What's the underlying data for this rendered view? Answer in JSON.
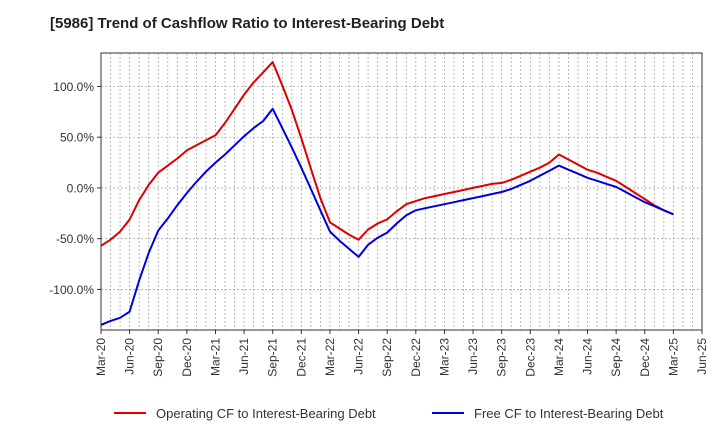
{
  "chart_data": {
    "type": "line",
    "title": "[5986]  Trend of Cashflow Ratio to Interest-Bearing Debt",
    "xlabel": "",
    "ylabel": "",
    "x": [
      "Mar-20",
      "Apr-20",
      "May-20",
      "Jun-20",
      "Jul-20",
      "Aug-20",
      "Sep-20",
      "Oct-20",
      "Nov-20",
      "Dec-20",
      "Jan-21",
      "Feb-21",
      "Mar-21",
      "Apr-21",
      "May-21",
      "Jun-21",
      "Jul-21",
      "Aug-21",
      "Sep-21",
      "Oct-21",
      "Nov-21",
      "Dec-21",
      "Jan-22",
      "Feb-22",
      "Mar-22",
      "Apr-22",
      "May-22",
      "Jun-22",
      "Jul-22",
      "Aug-22",
      "Sep-22",
      "Oct-22",
      "Nov-22",
      "Dec-22",
      "Jan-23",
      "Feb-23",
      "Mar-23",
      "Apr-23",
      "May-23",
      "Jun-23",
      "Jul-23",
      "Aug-23",
      "Sep-23",
      "Oct-23",
      "Nov-23",
      "Dec-23",
      "Jan-24",
      "Feb-24",
      "Mar-24",
      "Apr-24",
      "May-24",
      "Jun-24",
      "Jul-24",
      "Aug-24",
      "Sep-24",
      "Oct-24",
      "Nov-24",
      "Dec-24",
      "Jan-25",
      "Feb-25",
      "Mar-25"
    ],
    "x_tick_labels": [
      "Mar-20",
      "Jun-20",
      "Sep-20",
      "Dec-20",
      "Mar-21",
      "Jun-21",
      "Sep-21",
      "Dec-21",
      "Mar-22",
      "Jun-22",
      "Sep-22",
      "Dec-22",
      "Mar-23",
      "Jun-23",
      "Sep-23",
      "Dec-23",
      "Mar-24",
      "Jun-24",
      "Sep-24",
      "Dec-24",
      "Mar-25",
      "Jun-25"
    ],
    "y_tick_labels": [
      "100.0%",
      "50.0%",
      "0.0%",
      "-50.0%",
      "-100.0%"
    ],
    "y_ticks": [
      100,
      50,
      0,
      -50,
      -100
    ],
    "ylim": [
      -140,
      133
    ],
    "grid": true,
    "legend_position": "bottom",
    "series": [
      {
        "name": "Operating CF to Interest-Bearing Debt",
        "color": "#dd0000",
        "values": [
          -57,
          -51,
          -43,
          -31,
          -12,
          3,
          15,
          22,
          29,
          37,
          42,
          47,
          52,
          64,
          78,
          92,
          104,
          114,
          124,
          101,
          77,
          49,
          19,
          -10,
          -34,
          -40,
          -46,
          -51,
          -41,
          -35,
          -31,
          -23,
          -16,
          -13,
          -10,
          -8,
          -6,
          -4,
          -2,
          0,
          2,
          4,
          5,
          8,
          12,
          16,
          20,
          25,
          33,
          28,
          23,
          18,
          15,
          11,
          7,
          1,
          -5,
          -11,
          -17,
          -22,
          -26
        ]
      },
      {
        "name": "Free CF to Interest-Bearing Debt",
        "color": "#0000dd",
        "values": [
          -135,
          -131,
          -128,
          -122,
          -91,
          -64,
          -42,
          -30,
          -17,
          -5,
          6,
          16,
          25,
          33,
          42,
          51,
          59,
          66,
          78,
          59,
          40,
          20,
          -1,
          -22,
          -43,
          -52,
          -60,
          -68,
          -56,
          -49,
          -44,
          -35,
          -27,
          -22,
          -20,
          -18,
          -16,
          -14,
          -12,
          -10,
          -8,
          -6,
          -4,
          -1,
          3,
          7,
          12,
          17,
          22,
          18,
          14,
          10,
          7,
          4,
          1,
          -4,
          -9,
          -14,
          -18,
          -22,
          -26
        ]
      }
    ]
  }
}
